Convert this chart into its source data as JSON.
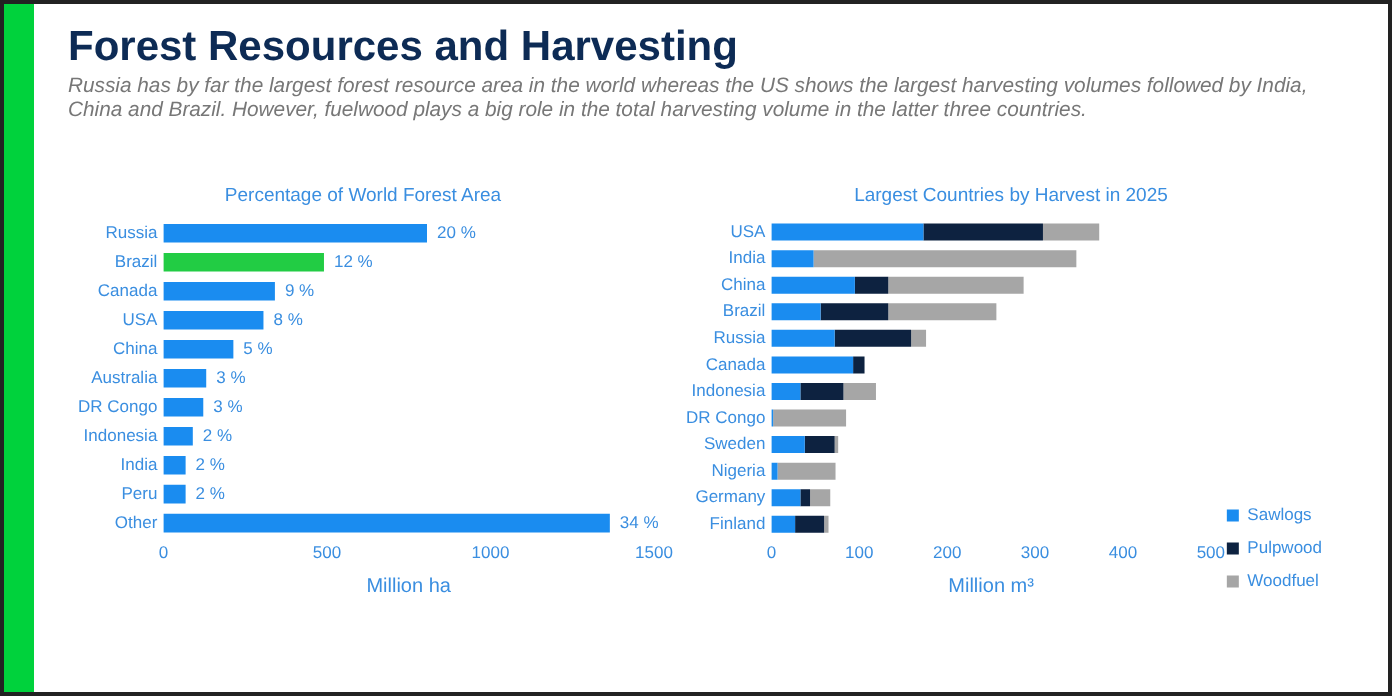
{
  "chart_data": [
    {
      "type": "other",
      "title": "Forest Resources and Harvesting",
      "subtitle": "Russia has by far the largest forest resource area in the world whereas the US shows the largest harvesting volumes followed by India, China and Brazil. However, fuelwood plays a big role in the total harvesting volume in the latter three countries."
    },
    {
      "type": "bar",
      "orientation": "horizontal",
      "title": "Percentage of World Forest Area",
      "xlabel": "Million ha",
      "categories": [
        "Russia",
        "Brazil",
        "Canada",
        "USA",
        "China",
        "Australia",
        "DR Congo",
        "Indonesia",
        "India",
        "Peru",
        "Other"
      ],
      "values": [
        806,
        491,
        341,
        306,
        214,
        131,
        122,
        90,
        68,
        68,
        1365
      ],
      "colors": [
        "#1a8cf0",
        "#22cc44",
        "#1a8cf0",
        "#1a8cf0",
        "#1a8cf0",
        "#1a8cf0",
        "#1a8cf0",
        "#1a8cf0",
        "#1a8cf0",
        "#1a8cf0",
        "#1a8cf0"
      ],
      "annotations": [
        {
          "text": "20 %",
          "x": 806,
          "y": "Russia"
        },
        {
          "text": "12 %",
          "x": 491,
          "y": "Brazil"
        },
        {
          "text": "9 %",
          "x": 341,
          "y": "Canada"
        },
        {
          "text": "8 %",
          "x": 306,
          "y": "USA"
        },
        {
          "text": "5 %",
          "x": 214,
          "y": "China"
        },
        {
          "text": "3 %",
          "x": 131,
          "y": "Australia"
        },
        {
          "text": "3 %",
          "x": 122,
          "y": "DR Congo"
        },
        {
          "text": "2 %",
          "x": 90,
          "y": "Indonesia"
        },
        {
          "text": "2 %",
          "x": 68,
          "y": "India"
        },
        {
          "text": "2 %",
          "x": 68,
          "y": "Peru"
        },
        {
          "text": "34 %",
          "x": 1365,
          "y": "Other"
        }
      ],
      "xlim": [
        0,
        1500
      ],
      "xticks": [
        0,
        500,
        1000,
        1500
      ],
      "grid": false,
      "legend": false
    },
    {
      "type": "bar",
      "orientation": "horizontal",
      "stacked": true,
      "title": "Largest Countries by Harvest in 2025",
      "xlabel": "Million m³",
      "categories": [
        "USA",
        "India",
        "China",
        "Brazil",
        "Russia",
        "Canada",
        "Indonesia",
        "DR Congo",
        "Sweden",
        "Nigeria",
        "Germany",
        "Finland"
      ],
      "series": [
        {
          "name": "Sawlogs",
          "color": "#1a8cf0",
          "values": [
            173,
            48,
            95,
            56,
            72,
            93,
            33,
            2,
            38,
            7,
            33,
            27
          ]
        },
        {
          "name": "Pulpwood",
          "color": "#0d2240",
          "values": [
            136,
            0,
            38,
            77,
            87,
            13,
            49,
            0,
            34,
            0,
            11,
            33
          ]
        },
        {
          "name": "Woodfuel",
          "color": "#a6a6a6",
          "values": [
            64,
            299,
            154,
            123,
            17,
            0,
            37,
            83,
            4,
            66,
            23,
            5
          ]
        }
      ],
      "xlim": [
        0,
        500
      ],
      "xticks": [
        0,
        100,
        200,
        300,
        400,
        500
      ],
      "grid": false,
      "legend": "right"
    }
  ]
}
